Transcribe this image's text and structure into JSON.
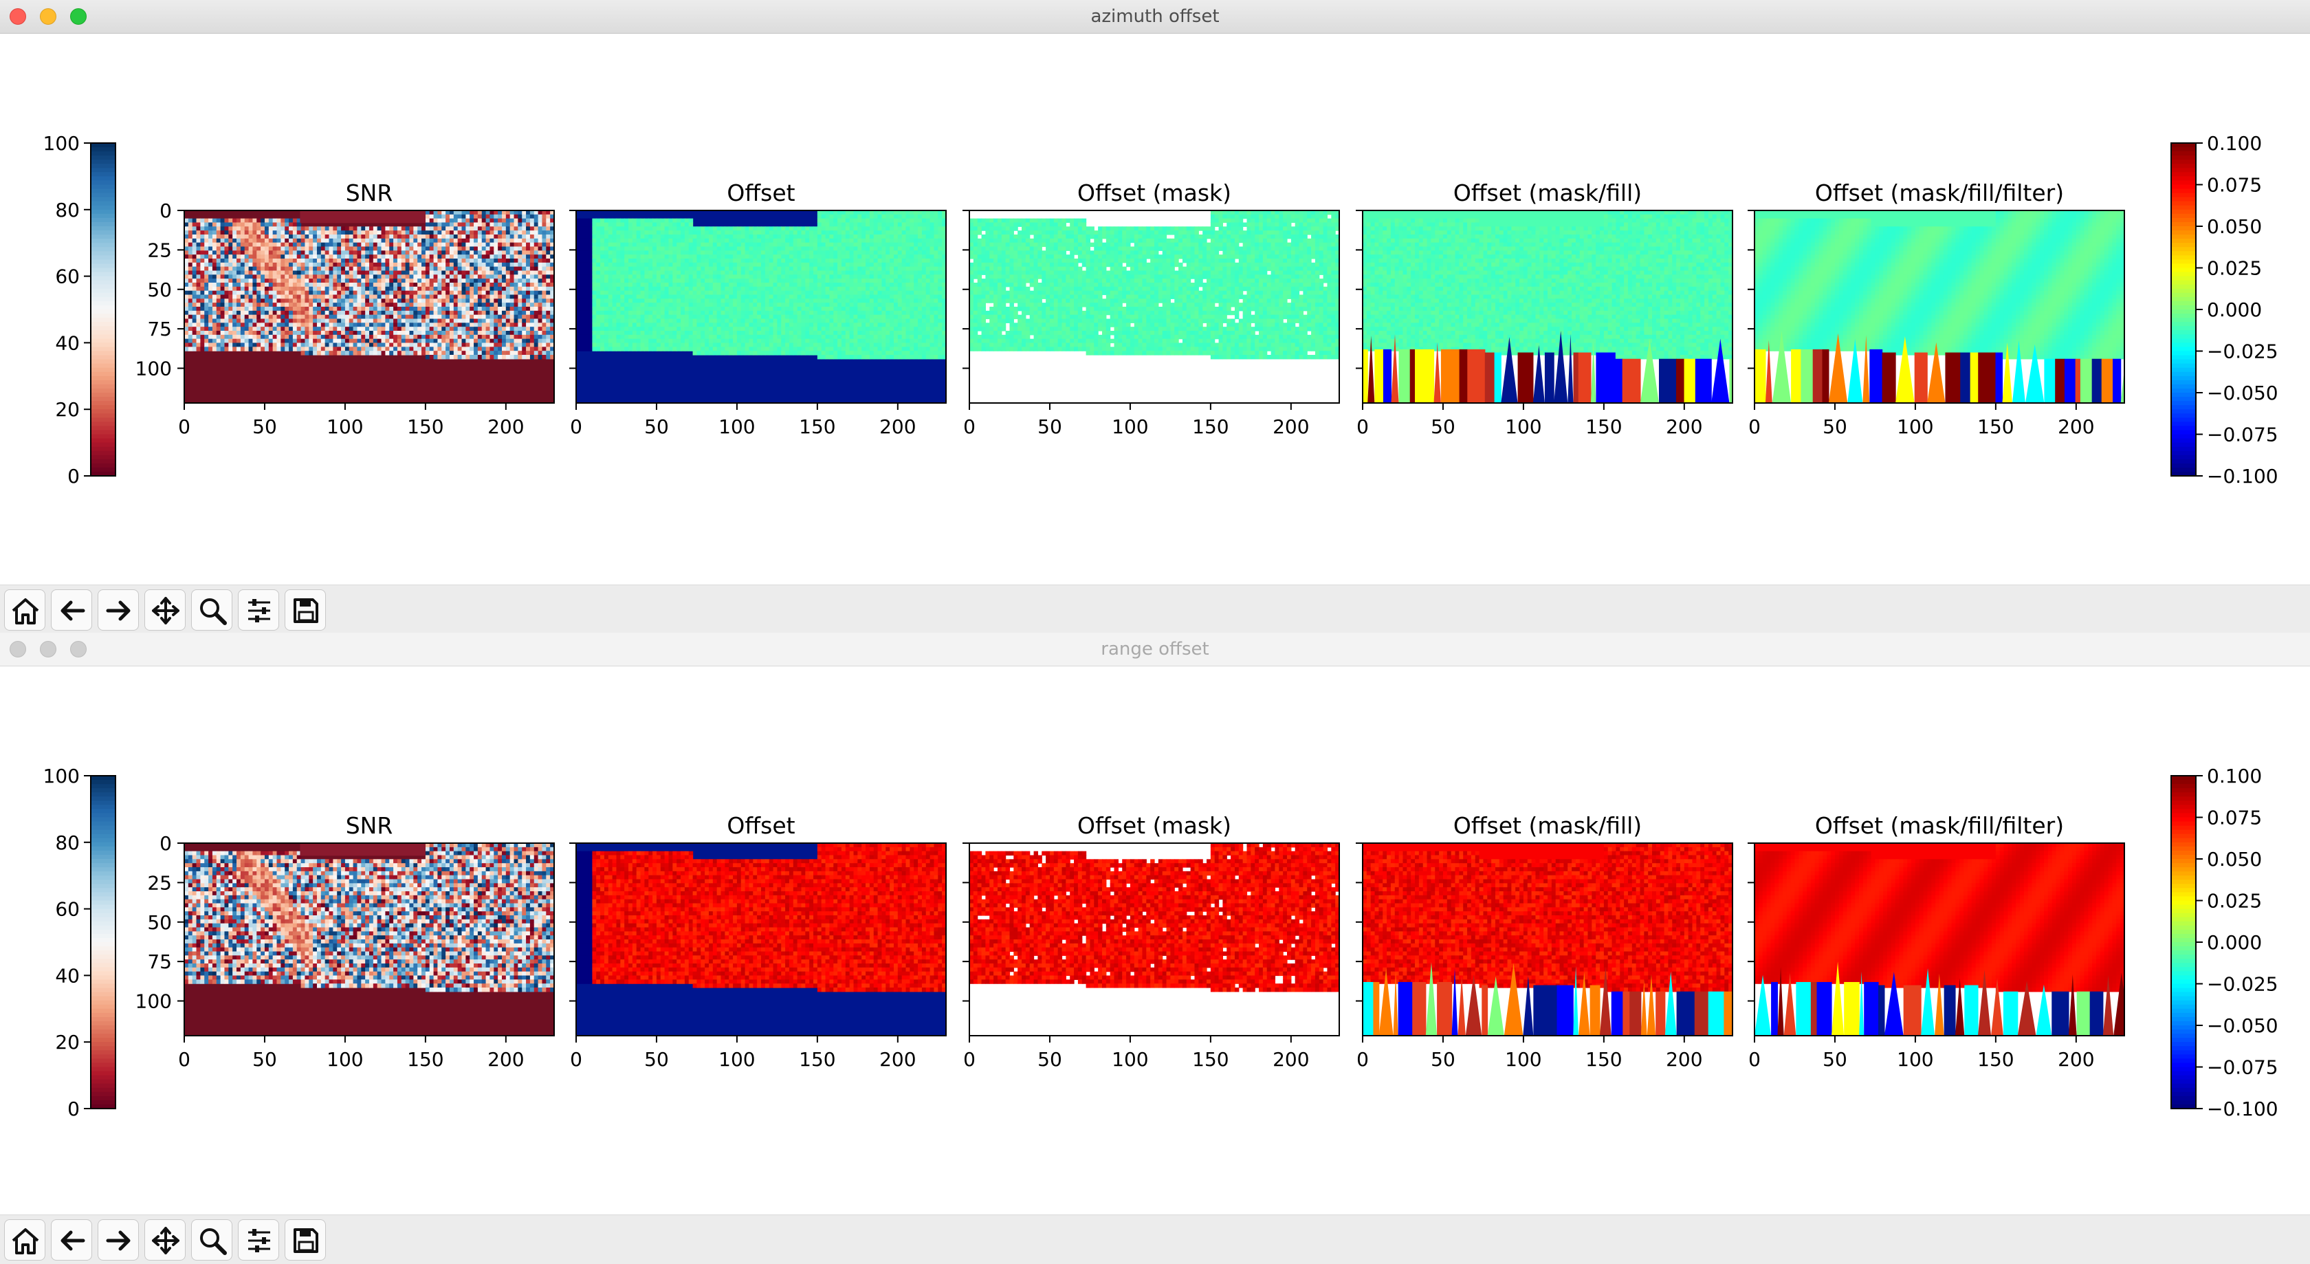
{
  "windows": [
    {
      "title": "azimuth offset",
      "active": true,
      "snr_colorbar": {
        "ticks": [
          "100",
          "80",
          "60",
          "40",
          "20",
          "0"
        ],
        "colormap": "RdBu"
      },
      "offset_colorbar": {
        "ticks": [
          "0.100",
          "0.075",
          "0.050",
          "0.025",
          "0.000",
          "−0.025",
          "−0.050",
          "−0.075",
          "−0.100"
        ],
        "colormap": "jet"
      },
      "panels": [
        {
          "title": "SNR",
          "kind": "snr"
        },
        {
          "title": "Offset",
          "kind": "offset"
        },
        {
          "title": "Offset (mask)",
          "kind": "mask"
        },
        {
          "title": "Offset (mask/fill)",
          "kind": "fill"
        },
        {
          "title": "Offset (mask/fill/filter)",
          "kind": "filter"
        }
      ],
      "field_level": "low"
    },
    {
      "title": "range offset",
      "active": false,
      "snr_colorbar": {
        "ticks": [
          "100",
          "80",
          "60",
          "40",
          "20",
          "0"
        ],
        "colormap": "RdBu"
      },
      "offset_colorbar": {
        "ticks": [
          "0.100",
          "0.075",
          "0.050",
          "0.025",
          "0.000",
          "−0.025",
          "−0.050",
          "−0.075",
          "−0.100"
        ],
        "colormap": "jet"
      },
      "panels": [
        {
          "title": "SNR",
          "kind": "snr"
        },
        {
          "title": "Offset",
          "kind": "offset"
        },
        {
          "title": "Offset (mask)",
          "kind": "mask"
        },
        {
          "title": "Offset (mask/fill)",
          "kind": "fill"
        },
        {
          "title": "Offset (mask/fill/filter)",
          "kind": "filter"
        }
      ],
      "field_level": "high"
    }
  ],
  "axes": {
    "x_ticks": [
      "0",
      "50",
      "100",
      "150",
      "200"
    ],
    "y_ticks": [
      "0",
      "25",
      "50",
      "75",
      "100"
    ]
  },
  "toolbar": {
    "buttons": [
      {
        "name": "home-button",
        "icon": "home-icon"
      },
      {
        "name": "back-button",
        "icon": "arrow-left-icon"
      },
      {
        "name": "forward-button",
        "icon": "arrow-right-icon"
      },
      {
        "name": "pan-button",
        "icon": "move-icon"
      },
      {
        "name": "zoom-button",
        "icon": "magnifier-icon"
      },
      {
        "name": "configure-subplots-button",
        "icon": "sliders-icon"
      },
      {
        "name": "save-button",
        "icon": "floppy-disk-icon"
      }
    ]
  }
}
